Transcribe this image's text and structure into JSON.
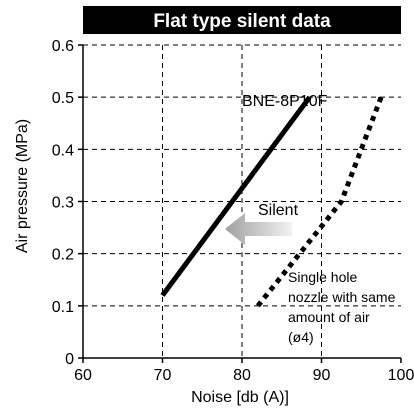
{
  "chart_data": {
    "type": "line",
    "title": "Flat type silent data",
    "xlabel": "Noise [db (A)]",
    "ylabel": "Air pressure (MPa)",
    "xlim": [
      60,
      100
    ],
    "ylim": [
      0,
      0.6
    ],
    "xticks": [
      "60",
      "70",
      "80",
      "90",
      "100"
    ],
    "yticks": [
      "0",
      "0.1",
      "0.2",
      "0.3",
      "0.4",
      "0.5",
      "0.6"
    ],
    "grid": true,
    "series": [
      {
        "name": "BNE-8P10F",
        "style": "solid",
        "x": [
          70,
          88.5
        ],
        "y": [
          0.12,
          0.5
        ]
      },
      {
        "name": "Single hole nozzle with same amount of air (ø4)",
        "style": "dotted",
        "x": [
          82,
          92.5,
          97.5
        ],
        "y": [
          0.1,
          0.3,
          0.5
        ]
      }
    ],
    "annotations": {
      "series_label_1": "BNE-8P10F",
      "arrow_label": "Silent",
      "series_label_2": [
        "Single hole",
        "nozzle with same",
        "amount of air",
        "(ø4)"
      ]
    },
    "colors": {
      "title_bg": "#000000",
      "title_text": "#ffffff",
      "line": "#000000",
      "grid": "#000000",
      "arrow": "#b0b0b0"
    }
  }
}
